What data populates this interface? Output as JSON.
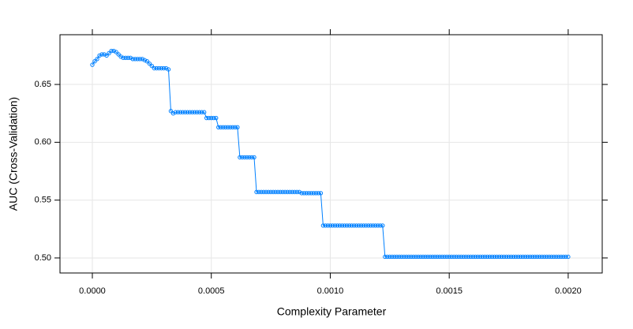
{
  "chart_data": {
    "type": "line",
    "x_label": "Complexity Parameter",
    "y_label": "AUC (Cross-Validation)",
    "color": "#0080ff",
    "grid": true,
    "xlim": [
      -0.000136,
      0.002143
    ],
    "ylim": [
      0.487,
      0.693
    ],
    "xticks": [
      {
        "value": 0,
        "label": "0.0000"
      },
      {
        "value": 0.0005,
        "label": "0.0005"
      },
      {
        "value": 0.001,
        "label": "0.0010"
      },
      {
        "value": 0.0015,
        "label": "0.0015"
      },
      {
        "value": 0.002,
        "label": "0.0020"
      }
    ],
    "yticks": [
      {
        "value": 0.5,
        "label": "0.50"
      },
      {
        "value": 0.55,
        "label": "0.55"
      },
      {
        "value": 0.6,
        "label": "0.60"
      },
      {
        "value": 0.65,
        "label": "0.65"
      }
    ],
    "x": [
      0,
      1e-05,
      2e-05,
      3e-05,
      4e-05,
      5e-05,
      6e-05,
      7e-05,
      8e-05,
      9e-05,
      0.0001,
      0.00011,
      0.00012,
      0.00013,
      0.00014,
      0.00015,
      0.00016,
      0.00017,
      0.00018,
      0.00019,
      0.0002,
      0.00021,
      0.00022,
      0.00023,
      0.00024,
      0.00025,
      0.00026,
      0.00027,
      0.00028,
      0.00029,
      0.0003,
      0.00031,
      0.00032,
      0.00033,
      0.00034,
      0.00035,
      0.00036,
      0.00037,
      0.00038,
      0.00039,
      0.0004,
      0.00041,
      0.00042,
      0.00043,
      0.00044,
      0.00045,
      0.00046,
      0.00047,
      0.00048,
      0.00049,
      0.0005,
      0.00051,
      0.00052,
      0.00053,
      0.00054,
      0.00055,
      0.00056,
      0.00057,
      0.00058,
      0.00059,
      0.0006,
      0.00061,
      0.00062,
      0.00063,
      0.00064,
      0.00065,
      0.00066,
      0.00067,
      0.00068,
      0.00069,
      0.0007,
      0.00071,
      0.00072,
      0.00073,
      0.00074,
      0.00075,
      0.00076,
      0.00077,
      0.00078,
      0.00079,
      0.0008,
      0.00081,
      0.00082,
      0.00083,
      0.00084,
      0.00085,
      0.00086,
      0.00087,
      0.00088,
      0.00089,
      0.0009,
      0.00091,
      0.00092,
      0.00093,
      0.00094,
      0.00095,
      0.00096,
      0.00097,
      0.00098,
      0.00099,
      0.001,
      0.00101,
      0.00102,
      0.00103,
      0.00104,
      0.00105,
      0.00106,
      0.00107,
      0.00108,
      0.00109,
      0.0011,
      0.00111,
      0.00112,
      0.00113,
      0.00114,
      0.00115,
      0.00116,
      0.00117,
      0.00118,
      0.00119,
      0.0012,
      0.00121,
      0.00122,
      0.00123,
      0.00124,
      0.00125,
      0.00126,
      0.00127,
      0.00128,
      0.00129,
      0.0013,
      0.00131,
      0.00132,
      0.00133,
      0.00134,
      0.00135,
      0.00136,
      0.00137,
      0.00138,
      0.00139,
      0.0014,
      0.00141,
      0.00142,
      0.00143,
      0.00144,
      0.00145,
      0.00146,
      0.00147,
      0.00148,
      0.00149,
      0.0015,
      0.00151,
      0.00152,
      0.00153,
      0.00154,
      0.00155,
      0.00156,
      0.00157,
      0.00158,
      0.00159,
      0.0016,
      0.00161,
      0.00162,
      0.00163,
      0.00164,
      0.00165,
      0.00166,
      0.00167,
      0.00168,
      0.00169,
      0.0017,
      0.00171,
      0.00172,
      0.00173,
      0.00174,
      0.00175,
      0.00176,
      0.00177,
      0.00178,
      0.00179,
      0.0018,
      0.00181,
      0.00182,
      0.00183,
      0.00184,
      0.00185,
      0.00186,
      0.00187,
      0.00188,
      0.00189,
      0.0019,
      0.00191,
      0.00192,
      0.00193,
      0.00194,
      0.00195,
      0.00196,
      0.00197,
      0.00198,
      0.00199,
      0.002
    ],
    "values": [
      0.667,
      0.67,
      0.672,
      0.675,
      0.676,
      0.676,
      0.675,
      0.677,
      0.679,
      0.679,
      0.678,
      0.676,
      0.674,
      0.673,
      0.673,
      0.673,
      0.673,
      0.672,
      0.672,
      0.672,
      0.672,
      0.672,
      0.671,
      0.67,
      0.668,
      0.666,
      0.664,
      0.664,
      0.664,
      0.664,
      0.664,
      0.664,
      0.663,
      0.627,
      0.625,
      0.626,
      0.626,
      0.626,
      0.626,
      0.626,
      0.626,
      0.626,
      0.626,
      0.626,
      0.626,
      0.626,
      0.626,
      0.626,
      0.621,
      0.621,
      0.621,
      0.621,
      0.621,
      0.613,
      0.613,
      0.613,
      0.613,
      0.613,
      0.613,
      0.613,
      0.613,
      0.613,
      0.587,
      0.587,
      0.587,
      0.587,
      0.587,
      0.587,
      0.587,
      0.557,
      0.557,
      0.557,
      0.557,
      0.557,
      0.557,
      0.557,
      0.557,
      0.557,
      0.557,
      0.557,
      0.557,
      0.557,
      0.557,
      0.557,
      0.557,
      0.557,
      0.557,
      0.557,
      0.556,
      0.556,
      0.556,
      0.556,
      0.556,
      0.556,
      0.556,
      0.556,
      0.556,
      0.528,
      0.528,
      0.528,
      0.528,
      0.528,
      0.528,
      0.528,
      0.528,
      0.528,
      0.528,
      0.528,
      0.528,
      0.528,
      0.528,
      0.528,
      0.528,
      0.528,
      0.528,
      0.528,
      0.528,
      0.528,
      0.528,
      0.528,
      0.528,
      0.528,
      0.528,
      0.501,
      0.501,
      0.501,
      0.501,
      0.501,
      0.501,
      0.501,
      0.501,
      0.501,
      0.501,
      0.501,
      0.501,
      0.501,
      0.501,
      0.501,
      0.501,
      0.501,
      0.501,
      0.501,
      0.501,
      0.501,
      0.501,
      0.501,
      0.501,
      0.501,
      0.501,
      0.501,
      0.501,
      0.501,
      0.501,
      0.501,
      0.501,
      0.501,
      0.501,
      0.501,
      0.501,
      0.501,
      0.501,
      0.501,
      0.501,
      0.501,
      0.501,
      0.501,
      0.501,
      0.501,
      0.501,
      0.501,
      0.501,
      0.501,
      0.501,
      0.501,
      0.501,
      0.501,
      0.501,
      0.501,
      0.501,
      0.501,
      0.501,
      0.501,
      0.501,
      0.501,
      0.501,
      0.501,
      0.501,
      0.501,
      0.501,
      0.501,
      0.501,
      0.501,
      0.501,
      0.501,
      0.501,
      0.501,
      0.501,
      0.501,
      0.501,
      0.501,
      0.501
    ]
  }
}
